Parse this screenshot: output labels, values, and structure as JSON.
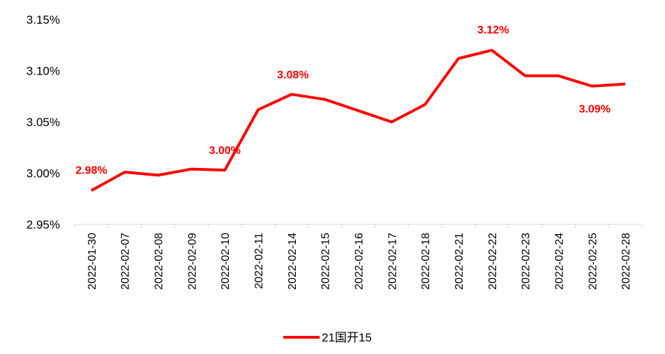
{
  "chart_data": {
    "type": "line",
    "title": "",
    "xlabel": "",
    "ylabel": "",
    "categories": [
      "2022-01-30",
      "2022-02-07",
      "2022-02-08",
      "2022-02-09",
      "2022-02-10",
      "2022-02-11",
      "2022-02-14",
      "2022-02-15",
      "2022-02-16",
      "2022-02-17",
      "2022-02-18",
      "2022-02-21",
      "2022-02-22",
      "2022-02-23",
      "2022-02-24",
      "2022-02-25",
      "2022-02-28"
    ],
    "series": [
      {
        "name": "21国开15",
        "color": "#ff0000",
        "values": [
          2.983,
          3.001,
          2.998,
          3.004,
          3.003,
          3.062,
          3.077,
          3.072,
          3.061,
          3.05,
          3.067,
          3.112,
          3.12,
          3.095,
          3.095,
          3.085,
          3.087
        ]
      }
    ],
    "ylim": [
      2.95,
      3.15
    ],
    "yticks": [
      "2.95%",
      "3.00%",
      "3.05%",
      "3.10%",
      "3.15%"
    ],
    "ytick_values": [
      2.95,
      3.0,
      3.05,
      3.1,
      3.15
    ],
    "annotations": [
      {
        "index": 0,
        "text": "2.98%"
      },
      {
        "index": 4,
        "text": "3.00%"
      },
      {
        "index": 6,
        "text": "3.08%"
      },
      {
        "index": 12,
        "text": "3.12%"
      },
      {
        "index": 15,
        "text": "3.09%"
      }
    ],
    "grid": false,
    "legend": {
      "position": "bottom",
      "label": "21国开15"
    }
  }
}
